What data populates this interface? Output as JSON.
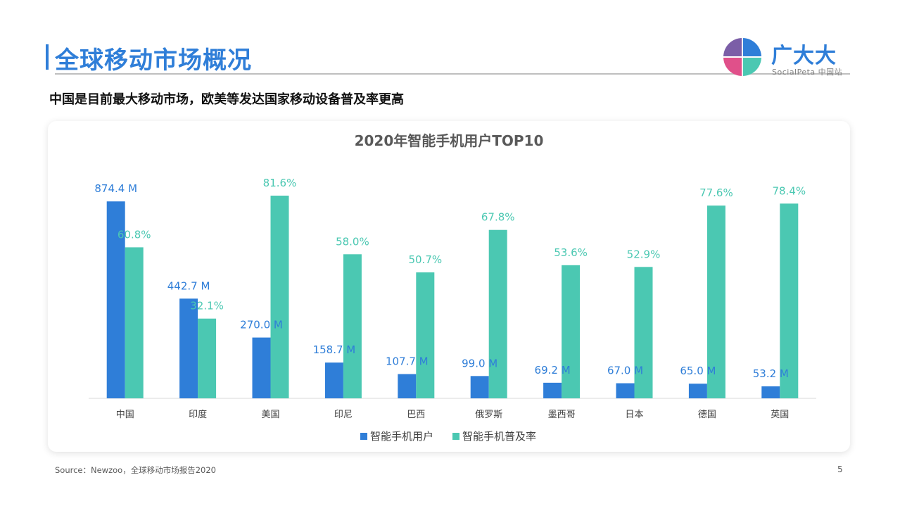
{
  "header": {
    "title": "全球移动市场概况",
    "logo_text": "广大大",
    "logo_sub": "SocialPeta 中国站"
  },
  "subtitle": "中国是目前最大移动市场，欧美等发达国家移动设备普及率更高",
  "footer": {
    "source": "Source：Newzoo，全球移动市场报告2020",
    "page": "5"
  },
  "colors": {
    "accent": "#2f7ed8",
    "users": "#2f7ed8",
    "penetration": "#4bc8b2"
  },
  "chart_data": {
    "type": "bar",
    "title": "2020年智能手机用户TOP10",
    "categories": [
      "中国",
      "印度",
      "美国",
      "印尼",
      "巴西",
      "俄罗斯",
      "墨西哥",
      "日本",
      "德国",
      "英国"
    ],
    "series": [
      {
        "name": "智能手机用户",
        "values": [
          874.4,
          442.7,
          270.0,
          158.7,
          107.7,
          99.0,
          69.2,
          67.0,
          65.0,
          53.2
        ],
        "labels": [
          "874.4 M",
          "442.7 M",
          "270.0 M",
          "158.7 M",
          "107.7 M",
          "99.0 M",
          "69.2 M",
          "67.0 M",
          "65.0 M",
          "53.2 M"
        ]
      },
      {
        "name": "智能手机普及率",
        "values": [
          60.8,
          32.1,
          81.6,
          58.0,
          50.7,
          67.8,
          53.6,
          52.9,
          77.6,
          78.4
        ],
        "labels": [
          "60.8%",
          "32.1%",
          "81.6%",
          "58.0%",
          "50.7%",
          "67.8%",
          "53.6%",
          "52.9%",
          "77.6%",
          "78.4%"
        ]
      }
    ],
    "grid": false,
    "legend": "bottom"
  }
}
